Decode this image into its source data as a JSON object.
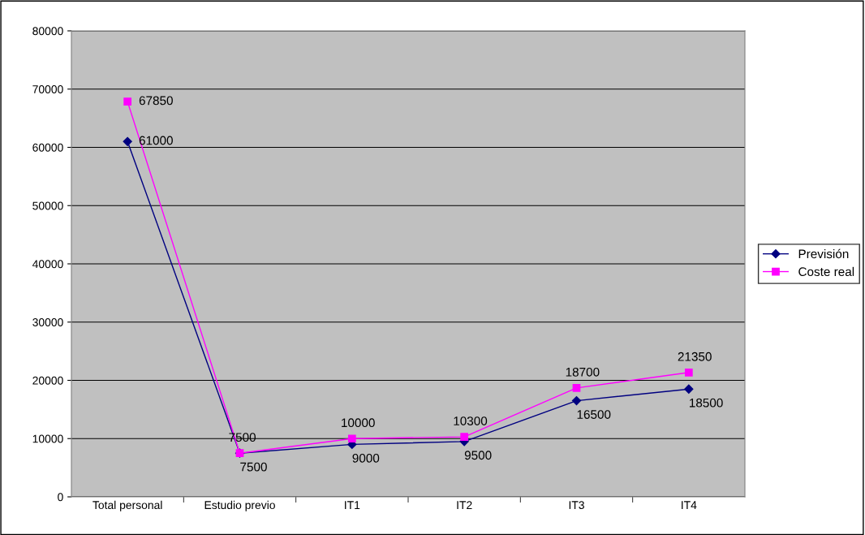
{
  "chart_data": {
    "type": "line",
    "categories": [
      "Total personal",
      "Estudio previo",
      "IT1",
      "IT2",
      "IT3",
      "IT4"
    ],
    "series": [
      {
        "name": "Previsión",
        "color": "#000080",
        "marker": "diamond",
        "values": [
          61000,
          7500,
          9000,
          9500,
          16500,
          18500
        ]
      },
      {
        "name": "Coste real",
        "color": "#ff00ff",
        "marker": "square",
        "values": [
          67850,
          7500,
          10000,
          10300,
          18700,
          21350
        ]
      }
    ],
    "ylim": [
      0,
      80000
    ],
    "yticks": [
      0,
      10000,
      20000,
      30000,
      40000,
      50000,
      60000,
      70000,
      80000
    ],
    "grid": "y",
    "legend": "right",
    "data_labels": true,
    "line_style": "solid"
  }
}
